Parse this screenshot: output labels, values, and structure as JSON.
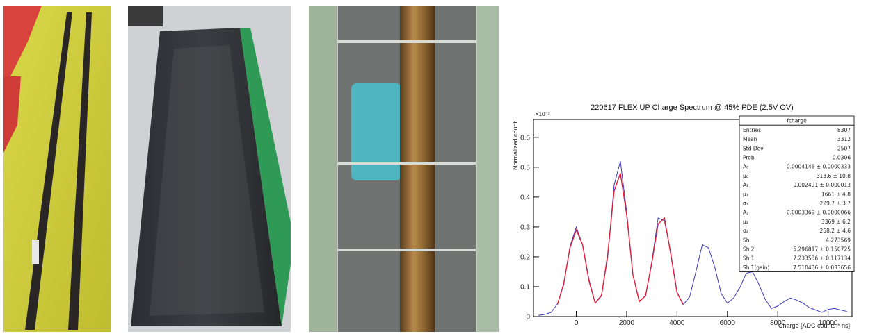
{
  "chart_data": {
    "type": "line",
    "title": "220617 FLEX UP Charge Spectrum @ 45% PDE (2.5V OV)",
    "x_label": "Charge [ADC counts * ns]",
    "y_label": "Normalized count",
    "y_multiplier": "×10⁻³",
    "x": [
      -1500,
      -1250,
      -1000,
      -750,
      -500,
      -250,
      0,
      250,
      500,
      750,
      1000,
      1250,
      1500,
      1750,
      2000,
      2250,
      2500,
      2750,
      3000,
      3250,
      3500,
      3750,
      4000,
      4250,
      4500,
      4750,
      5000,
      5250,
      5500,
      5750,
      6000,
      6250,
      6500,
      6750,
      7000,
      7250,
      7500,
      7750,
      8000,
      8250,
      8500,
      8750,
      9000,
      9250,
      9500,
      9750,
      10000,
      10250,
      10500,
      10750
    ],
    "series": [
      {
        "color": "#3a3ab8",
        "values": [
          0.004,
          0.007,
          0.014,
          0.042,
          0.105,
          0.235,
          0.3,
          0.24,
          0.125,
          0.046,
          0.072,
          0.2,
          0.44,
          0.52,
          0.35,
          0.14,
          0.052,
          0.068,
          0.185,
          0.33,
          0.32,
          0.215,
          0.082,
          0.04,
          0.066,
          0.15,
          0.24,
          0.23,
          0.165,
          0.078,
          0.045,
          0.062,
          0.098,
          0.145,
          0.15,
          0.108,
          0.058,
          0.027,
          0.035,
          0.05,
          0.062,
          0.055,
          0.045,
          0.03,
          0.022,
          0.014,
          0.024,
          0.027,
          0.022,
          0.017
        ]
      },
      {
        "color": "#e0203a",
        "values": [
          null,
          null,
          null,
          0.04,
          0.11,
          0.23,
          0.29,
          0.24,
          0.12,
          0.045,
          0.07,
          0.21,
          0.42,
          0.48,
          0.34,
          0.14,
          0.05,
          0.07,
          0.18,
          0.31,
          0.33,
          0.21,
          0.08,
          0.04,
          null,
          null,
          null,
          null,
          null,
          null,
          null,
          null,
          null,
          null,
          null,
          null,
          null,
          null,
          null,
          null,
          null,
          null,
          null,
          null,
          null,
          null,
          null,
          null,
          null,
          null
        ]
      }
    ],
    "xlim": [
      -1700,
      10950
    ],
    "ylim": [
      0,
      0.66
    ],
    "xticks": [
      0,
      2000,
      4000,
      6000,
      8000,
      10000
    ],
    "yticks": [
      0,
      0.1,
      0.2,
      0.3,
      0.4,
      0.5,
      0.6
    ],
    "stats_box": {
      "title": "fcharge",
      "rows": [
        [
          "Entries",
          "8307"
        ],
        [
          "Mean",
          "3312"
        ],
        [
          "Std Dev",
          "2507"
        ],
        [
          "Prob",
          "0.0306"
        ],
        [
          "A₀",
          "0.0004146 ± 0.0000333"
        ],
        [
          "μ₀",
          "313.6 ± 10.8"
        ],
        [
          "A₁",
          "0.002491 ± 0.000013"
        ],
        [
          "μ₁",
          "1661 ± 4.8"
        ],
        [
          "σ₁",
          "229.7 ± 3.7"
        ],
        [
          "A₂",
          "0.0003369 ± 0.0000066"
        ],
        [
          "μ₂",
          "3369 ± 6.2"
        ],
        [
          "σ₂",
          "258.2 ± 4.6"
        ],
        [
          "Shi",
          "4.273569"
        ],
        [
          "Shi2",
          "5.296817 ± 0.150725"
        ],
        [
          "Shi1",
          "7.233536 ± 0.117134"
        ],
        [
          "Shi1(gain)",
          "7.510436 ± 0.033656"
        ]
      ]
    }
  }
}
